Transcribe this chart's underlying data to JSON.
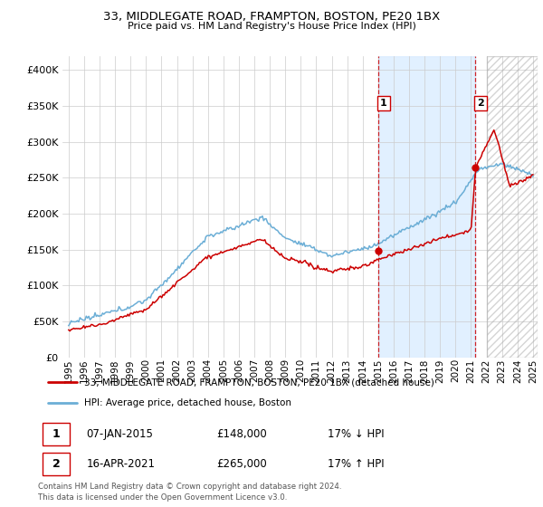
{
  "title": "33, MIDDLEGATE ROAD, FRAMPTON, BOSTON, PE20 1BX",
  "subtitle": "Price paid vs. HM Land Registry's House Price Index (HPI)",
  "footer": "Contains HM Land Registry data © Crown copyright and database right 2024.\nThis data is licensed under the Open Government Licence v3.0.",
  "legend_line1": "33, MIDDLEGATE ROAD, FRAMPTON, BOSTON, PE20 1BX (detached house)",
  "legend_line2": "HPI: Average price, detached house, Boston",
  "transaction1_date": "07-JAN-2015",
  "transaction1_price": "£148,000",
  "transaction1_hpi": "17% ↓ HPI",
  "transaction2_date": "16-APR-2021",
  "transaction2_price": "£265,000",
  "transaction2_hpi": "17% ↑ HPI",
  "hpi_color": "#6baed6",
  "price_color": "#cc0000",
  "shade_color": "#ddeeff",
  "ylim": [
    0,
    420000
  ],
  "yticks": [
    0,
    50000,
    100000,
    150000,
    200000,
    250000,
    300000,
    350000,
    400000
  ],
  "transaction1_x": 2015.03,
  "transaction1_y": 148000,
  "transaction2_x": 2021.29,
  "transaction2_y": 265000,
  "hatch_start": 2022.0,
  "xlim_left": 1994.6,
  "xlim_right": 2025.3
}
